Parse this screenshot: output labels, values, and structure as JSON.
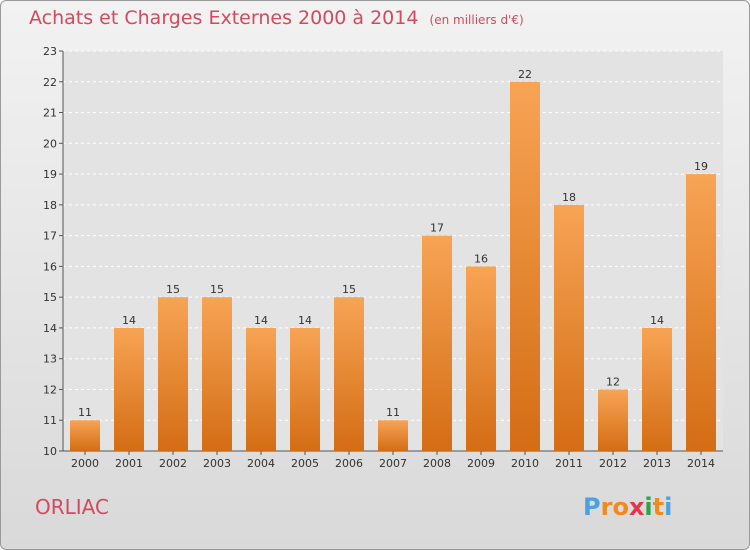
{
  "header": {
    "title": "Achats et Charges Externes 2000 à 2014",
    "unit": "(en milliers d'€)"
  },
  "footer": {
    "commune": "ORLIAC",
    "logo": [
      "P",
      "r",
      "o",
      "x",
      "i",
      "t",
      "i"
    ]
  },
  "colors": {
    "title": "#d4495e",
    "bar_light": "#f7a455",
    "bar_dark": "#d46d14",
    "logo_letters": [
      "#4aa3df",
      "#f08a1c",
      "#f08a1c",
      "#e8334a",
      "#2ca24a",
      "#f08a1c",
      "#4aa3df"
    ]
  },
  "chart_data": {
    "type": "bar",
    "title": "Achats et Charges Externes 2000 à 2014",
    "categories": [
      "2000",
      "2001",
      "2002",
      "2003",
      "2004",
      "2005",
      "2006",
      "2007",
      "2008",
      "2009",
      "2010",
      "2011",
      "2012",
      "2013",
      "2014"
    ],
    "values": [
      11,
      14,
      15,
      15,
      14,
      14,
      15,
      11,
      17,
      16,
      22,
      18,
      12,
      14,
      19
    ],
    "ylim": [
      10,
      23
    ],
    "yticks": [
      10,
      11,
      12,
      13,
      14,
      15,
      16,
      17,
      18,
      19,
      20,
      21,
      22,
      23
    ],
    "grid": true
  }
}
